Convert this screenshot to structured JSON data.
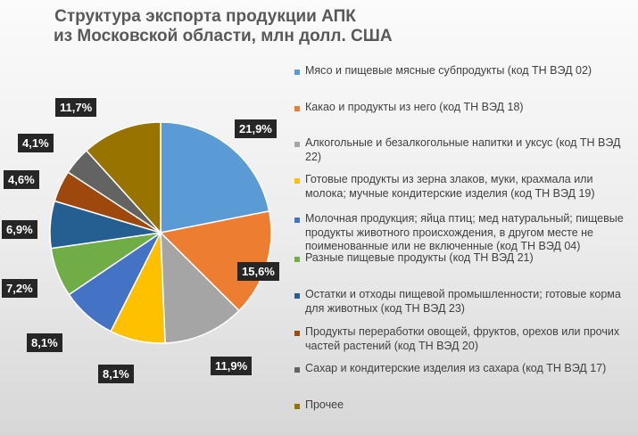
{
  "chart_data": {
    "type": "pie",
    "title": [
      "Структура экспорта продукции АПК",
      "из Московской области, млн долл. США"
    ],
    "slices": [
      {
        "label": "Мясо и пищевые мясные субпродукты (код ТН ВЭД 02)",
        "value": 21.9,
        "display": "21,9%",
        "color": "#5B9BD5"
      },
      {
        "label": "Какао и продукты из него (код ТН ВЭД 18)",
        "value": 15.6,
        "display": "15,6%",
        "color": "#ED7D31"
      },
      {
        "label": " Алкогольные и безалкогольные напитки и уксус (код ТН ВЭД 22)",
        "value": 11.9,
        "display": "11,9%",
        "color": "#A5A5A5"
      },
      {
        "label": "Готовые продукты из зерна злаков, муки, крахмала  или молока; мучные кондитерские изделия (код ТН ВЭД 19)",
        "value": 8.1,
        "display": "8,1%",
        "color": "#FFC000"
      },
      {
        "label": "Молочная продукция; яйца птиц; мед натуральный; пищевые продукты животного происхождения,  в другом месте не поименованные  или не включенные (код ТН ВЭД 04)",
        "value": 8.1,
        "display": "8,1%",
        "color": "#4472C4"
      },
      {
        "label": "Разные пищевые продукты (код ТН ВЭД 21)",
        "value": 7.2,
        "display": "7,2%",
        "color": "#70AD47"
      },
      {
        "label": "Остатки и отходы пищевой промышленности; готовые корма для животных (код ТН ВЭД 23)",
        "value": 6.9,
        "display": "6,9%",
        "color": "#255E91"
      },
      {
        "label": "Продукты переработки овощей, фруктов,  орехов или прочих частей растений (код ТН ВЭД 20)",
        "value": 4.6,
        "display": "4,6%",
        "color": "#9E480E"
      },
      {
        "label": "Сахар и кондитерские изделия из сахара (код ТН ВЭД 17)",
        "value": 4.1,
        "display": "4,1%",
        "color": "#636363"
      },
      {
        "label": "Прочее",
        "value": 11.7,
        "display": "11,7%",
        "color": "#997300"
      }
    ]
  }
}
